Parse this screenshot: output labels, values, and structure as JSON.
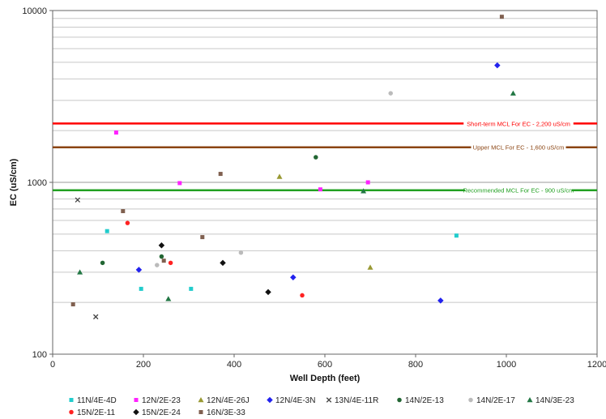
{
  "chart_data": {
    "type": "scatter",
    "title": "",
    "xlabel": "Well Depth (feet)",
    "ylabel": "EC (uS/cm)",
    "xlim": [
      0,
      1200
    ],
    "ylim": [
      100,
      10000
    ],
    "yscale": "log",
    "x_ticks": [
      0,
      200,
      400,
      600,
      800,
      1000,
      1200
    ],
    "y_ticks": [
      100,
      1000,
      10000
    ],
    "grid": "horizontal minor gridlines",
    "legend_position": "bottom",
    "reference_lines": [
      {
        "label": "Short-term MCL For EC - 2,200 uS/cm",
        "value": 2200,
        "color": "#ff0000"
      },
      {
        "label": "Upper MCL For EC - 1,600 uS/cm",
        "value": 1600,
        "color": "#8b4513"
      },
      {
        "label": "Recommended MCL For EC - 900 uS/cm",
        "value": 900,
        "color": "#22a022"
      }
    ],
    "series": [
      {
        "name": "11N/4E-4D",
        "color": "#22cccc",
        "marker": "square",
        "points": [
          [
            120,
            520
          ],
          [
            195,
            240
          ],
          [
            305,
            240
          ],
          [
            890,
            490
          ]
        ]
      },
      {
        "name": "12N/2E-23",
        "color": "#ff22ff",
        "marker": "square",
        "points": [
          [
            140,
            1950
          ],
          [
            280,
            990
          ],
          [
            590,
            910
          ],
          [
            695,
            1000
          ]
        ]
      },
      {
        "name": "12N/4E-26J",
        "color": "#999933",
        "marker": "triangle",
        "points": [
          [
            500,
            1080
          ],
          [
            700,
            320
          ]
        ]
      },
      {
        "name": "12N/4E-3N",
        "color": "#2222ee",
        "marker": "diamond",
        "points": [
          [
            190,
            310
          ],
          [
            530,
            280
          ],
          [
            855,
            205
          ],
          [
            980,
            4800
          ]
        ]
      },
      {
        "name": "13N/4E-11R",
        "color": "#444444",
        "marker": "x",
        "points": [
          [
            95,
            165
          ],
          [
            55,
            790
          ]
        ]
      },
      {
        "name": "14N/2E-13",
        "color": "#226633",
        "marker": "circle",
        "points": [
          [
            110,
            340
          ],
          [
            240,
            370
          ],
          [
            580,
            1400
          ]
        ]
      },
      {
        "name": "14N/2E-17",
        "color": "#bbbbbb",
        "marker": "circle",
        "points": [
          [
            230,
            330
          ],
          [
            415,
            390
          ],
          [
            745,
            3300
          ]
        ]
      },
      {
        "name": "14N/3E-23",
        "color": "#227744",
        "marker": "triangle",
        "points": [
          [
            60,
            300
          ],
          [
            255,
            210
          ],
          [
            685,
            890
          ],
          [
            1015,
            3300
          ]
        ]
      },
      {
        "name": "15N/2E-11",
        "color": "#ff2222",
        "marker": "circle",
        "points": [
          [
            165,
            580
          ],
          [
            260,
            340
          ],
          [
            550,
            220
          ]
        ]
      },
      {
        "name": "15N/2E-24",
        "color": "#111111",
        "marker": "diamond",
        "points": [
          [
            240,
            430
          ],
          [
            375,
            340
          ],
          [
            475,
            230
          ]
        ]
      },
      {
        "name": "16N/3E-33",
        "color": "#806050",
        "marker": "square",
        "points": [
          [
            45,
            195
          ],
          [
            155,
            680
          ],
          [
            245,
            350
          ],
          [
            330,
            480
          ],
          [
            370,
            1120
          ],
          [
            990,
            9200
          ]
        ]
      }
    ]
  }
}
